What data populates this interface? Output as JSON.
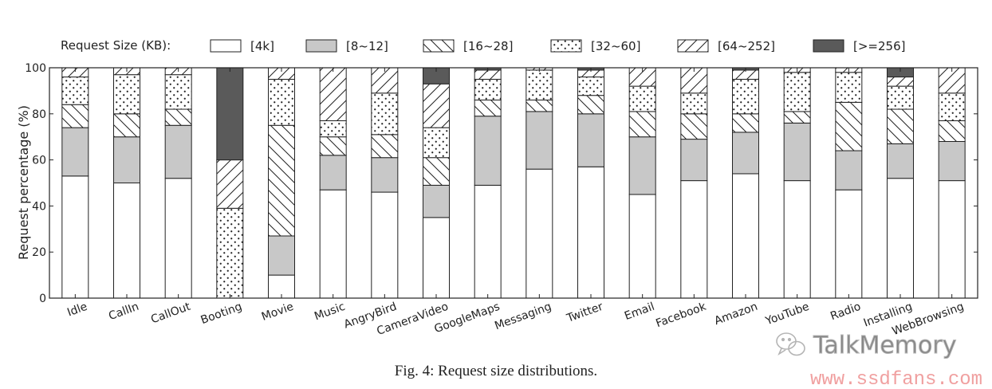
{
  "chart_data": {
    "type": "bar",
    "stacked": true,
    "ylabel": "Request percentage (%)",
    "xlabel": "",
    "ylim": [
      0,
      100
    ],
    "yticks": [
      0,
      20,
      40,
      60,
      80,
      100
    ],
    "legend_title": "Request Size (KB):",
    "legend_placement": "top",
    "grid": false,
    "categories": [
      "Idle",
      "CallIn",
      "CallOut",
      "Booting",
      "Movie",
      "Music",
      "AngryBird",
      "CameraVideo",
      "GoogleMaps",
      "Messaging",
      "Twitter",
      "Email",
      "Facebook",
      "Amazon",
      "YouTube",
      "Radio",
      "Installing",
      "WebBrowsing"
    ],
    "series": [
      {
        "name": "[4k]",
        "pattern": "solid-white",
        "color": "#ffffff",
        "values": [
          53,
          50,
          52,
          0,
          10,
          47,
          46,
          35,
          49,
          56,
          57,
          45,
          51,
          54,
          51,
          47,
          52,
          51
        ]
      },
      {
        "name": "[8~12]",
        "pattern": "solid-light-gray",
        "color": "#c8c8c8",
        "values": [
          21,
          20,
          23,
          0,
          17,
          15,
          15,
          14,
          30,
          25,
          23,
          25,
          18,
          18,
          25,
          17,
          15,
          17
        ]
      },
      {
        "name": "[16~28]",
        "pattern": "backslash-hatch",
        "color": "#ffffff",
        "values": [
          10,
          10,
          7,
          0,
          48,
          8,
          10,
          12,
          7,
          5,
          8,
          11,
          11,
          8,
          5,
          21,
          15,
          9
        ]
      },
      {
        "name": "[32~60]",
        "pattern": "dots",
        "color": "#ffffff",
        "values": [
          12,
          17,
          15,
          39,
          20,
          7,
          18,
          13,
          9,
          13,
          8,
          11,
          9,
          15,
          17,
          13,
          10,
          12
        ]
      },
      {
        "name": "[64~252]",
        "pattern": "slash-hatch",
        "color": "#ffffff",
        "values": [
          4,
          3,
          3,
          21,
          5,
          23,
          11,
          19,
          4,
          1,
          3,
          8,
          11,
          4,
          2,
          2,
          4,
          11
        ]
      },
      {
        "name": "[>=256]",
        "pattern": "solid-dark-gray",
        "color": "#5a5a5a",
        "values": [
          0,
          0,
          0,
          40,
          0,
          0,
          0,
          7,
          1,
          0,
          1,
          0,
          0,
          1,
          0,
          0,
          4,
          0
        ]
      }
    ]
  },
  "caption": "Fig. 4: Request size distributions.",
  "watermark": {
    "brand": "TalkMemory",
    "url": "www.ssdfans.com",
    "url_color": "#f0a0a0"
  }
}
